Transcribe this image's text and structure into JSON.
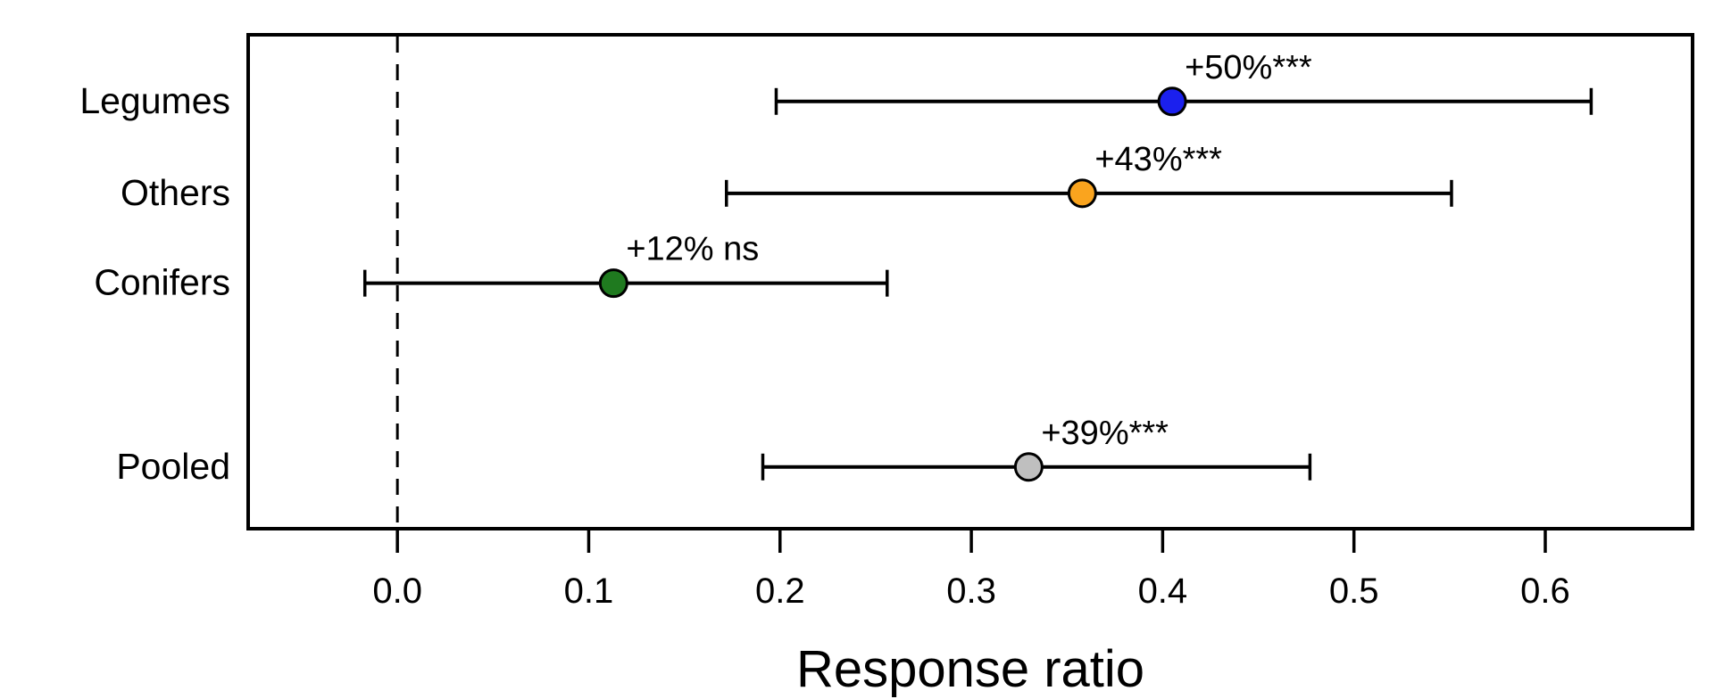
{
  "figure": {
    "background_color": "#ffffff",
    "foreground_color": "#000000"
  },
  "chart_data": {
    "type": "scatter",
    "subtype": "forest-plot-with-error-bars",
    "orientation": "horizontal",
    "title": "",
    "xlabel": "Response ratio",
    "ylabel": "",
    "xlim": [
      -0.078,
      0.677
    ],
    "xticks": [
      0.0,
      0.1,
      0.2,
      0.3,
      0.4,
      0.5,
      0.6
    ],
    "xtick_labels": [
      "0.0",
      "0.1",
      "0.2",
      "0.3",
      "0.4",
      "0.5",
      "0.6"
    ],
    "reference_line_x": 0.0,
    "reference_line_style": "dashed",
    "grid": false,
    "legend": "none",
    "series": [
      {
        "category": "Legumes",
        "value": 0.405,
        "ci_low": 0.198,
        "ci_high": 0.624,
        "annotation": "+50%***",
        "percent_change": "+50%",
        "significance": "***",
        "color": "#1b20ee",
        "row_frac": 0.135
      },
      {
        "category": "Others",
        "value": 0.358,
        "ci_low": 0.172,
        "ci_high": 0.551,
        "annotation": "+43%***",
        "percent_change": "+43%",
        "significance": "***",
        "color": "#faa41e",
        "row_frac": 0.321
      },
      {
        "category": "Conifers",
        "value": 0.113,
        "ci_low": -0.017,
        "ci_high": 0.256,
        "annotation": "+12% ns",
        "percent_change": "+12%",
        "significance": "ns",
        "color": "#1f7a1f",
        "row_frac": 0.503
      },
      {
        "category": "Pooled",
        "value": 0.33,
        "ci_low": 0.191,
        "ci_high": 0.477,
        "annotation": "+39%***",
        "percent_change": "+39%",
        "significance": "***",
        "color": "#bfbfbf",
        "row_frac": 0.875
      }
    ]
  }
}
